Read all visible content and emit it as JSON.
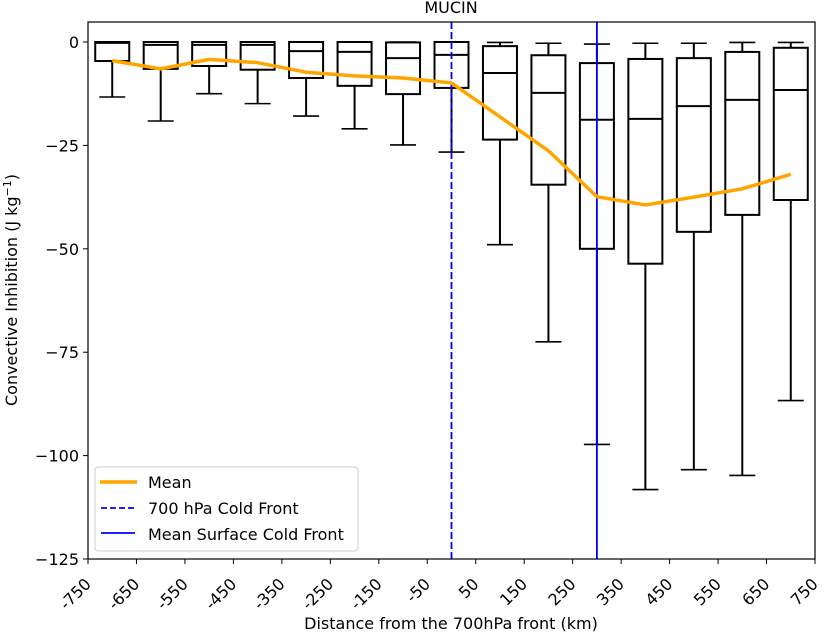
{
  "chart_data": {
    "type": "boxplot",
    "title": "MUCIN",
    "xlabel": "Distance from the 700hPa front (km)",
    "ylabel": "Convective Inhibition (J kg⁻¹)",
    "xlim": [
      -750,
      750
    ],
    "ylim": [
      -125,
      5
    ],
    "xticks": [
      -750,
      -650,
      -550,
      -450,
      -350,
      -250,
      -150,
      -50,
      50,
      150,
      250,
      350,
      450,
      550,
      650,
      750
    ],
    "xtick_labels": [
      "-750",
      "-650",
      "-550",
      "-450",
      "-350",
      "-250",
      "-150",
      "-50",
      "50",
      "150",
      "250",
      "350",
      "450",
      "550",
      "650",
      "750"
    ],
    "yticks": [
      0,
      -25,
      -50,
      -75,
      -100,
      -125
    ],
    "ytick_labels": [
      "0",
      "−25",
      "−50",
      "−75",
      "−100",
      "−125"
    ],
    "grid": false,
    "boxes": [
      {
        "x": -700,
        "whisker_high": 0.0,
        "q3": 0.0,
        "median": -0.2,
        "q1": -4.6,
        "whisker_low": -13.3
      },
      {
        "x": -600,
        "whisker_high": 0.0,
        "q3": 0.0,
        "median": -0.7,
        "q1": -6.5,
        "whisker_low": -19.1
      },
      {
        "x": -500,
        "whisker_high": 0.0,
        "q3": 0.0,
        "median": -0.7,
        "q1": -5.8,
        "whisker_low": -12.5
      },
      {
        "x": -400,
        "whisker_high": 0.0,
        "q3": 0.0,
        "median": -0.7,
        "q1": -6.7,
        "whisker_low": -14.9
      },
      {
        "x": -300,
        "whisker_high": 0.0,
        "q3": 0.0,
        "median": -2.2,
        "q1": -8.7,
        "whisker_low": -17.9
      },
      {
        "x": -200,
        "whisker_high": 0.0,
        "q3": 0.0,
        "median": -2.4,
        "q1": -10.6,
        "whisker_low": -21.0
      },
      {
        "x": -100,
        "whisker_high": 0.0,
        "q3": -0.1,
        "median": -3.9,
        "q1": -12.6,
        "whisker_low": -24.9
      },
      {
        "x": 0,
        "whisker_high": 0.0,
        "q3": 0.0,
        "median": -3.1,
        "q1": -11.1,
        "whisker_low": -26.6
      },
      {
        "x": 100,
        "whisker_high": -0.1,
        "q3": -1.0,
        "median": -7.5,
        "q1": -23.6,
        "whisker_low": -49.0
      },
      {
        "x": 200,
        "whisker_high": -0.3,
        "q3": -3.2,
        "median": -12.3,
        "q1": -34.5,
        "whisker_low": -72.5
      },
      {
        "x": 300,
        "whisker_high": -0.5,
        "q3": -5.1,
        "median": -18.8,
        "q1": -50.0,
        "whisker_low": -97.3
      },
      {
        "x": 400,
        "whisker_high": -0.3,
        "q3": -4.1,
        "median": -18.6,
        "q1": -53.6,
        "whisker_low": -108.2
      },
      {
        "x": 500,
        "whisker_high": -0.3,
        "q3": -3.9,
        "median": -15.5,
        "q1": -45.9,
        "whisker_low": -103.4
      },
      {
        "x": 600,
        "whisker_high": -0.1,
        "q3": -2.4,
        "median": -14.0,
        "q1": -41.8,
        "whisker_low": -104.8
      },
      {
        "x": 700,
        "whisker_high": -0.1,
        "q3": -1.4,
        "median": -11.6,
        "q1": -38.2,
        "whisker_low": -86.7
      }
    ],
    "series": [
      {
        "name": "Mean",
        "type": "line",
        "color": "#FFA500",
        "x": [
          -700,
          -600,
          -500,
          -400,
          -300,
          -200,
          -100,
          0,
          100,
          200,
          300,
          400,
          500,
          600,
          700
        ],
        "values": [
          -4.5,
          -6.5,
          -4.2,
          -5.0,
          -7.3,
          -8.2,
          -8.7,
          -9.9,
          -18.1,
          -26.3,
          -37.4,
          -39.4,
          -37.5,
          -35.5,
          -32.0
        ]
      }
    ],
    "vlines": [
      {
        "name": "700 hPa Cold Front",
        "x": 0,
        "style": "dashed",
        "color": "#0000FF"
      },
      {
        "name": "Mean Surface Cold Front",
        "x": 300,
        "style": "solid",
        "color": "#0000FF"
      }
    ],
    "legend": {
      "placement": "lower-left",
      "entries": [
        {
          "label": "Mean",
          "style": "solid-thick",
          "color": "#FFA500"
        },
        {
          "label": "700 hPa Cold Front",
          "style": "dashed",
          "color": "#0000FF"
        },
        {
          "label": "Mean Surface Cold Front",
          "style": "solid",
          "color": "#0000FF"
        }
      ]
    }
  }
}
